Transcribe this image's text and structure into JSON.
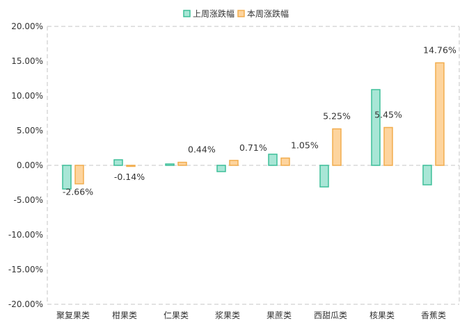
{
  "chart_data": {
    "type": "bar",
    "categories": [
      "聚复果类",
      "柑果类",
      "仁果类",
      "浆果类",
      "果蔗类",
      "西甜瓜类",
      "核果类",
      "香蕉类"
    ],
    "series": [
      {
        "name": "上周涨跌幅",
        "values": [
          -3.4,
          0.8,
          0.2,
          -0.9,
          1.6,
          -3.1,
          10.9,
          -2.8
        ],
        "fill": "#a8e6d6",
        "stroke": "#3dbf99"
      },
      {
        "name": "本周涨跌幅",
        "values": [
          -2.66,
          -0.14,
          0.44,
          0.71,
          1.05,
          5.25,
          5.45,
          14.76
        ],
        "fill": "#fdd49e",
        "stroke": "#f2ad4e",
        "data_labels": [
          "-2.66%",
          "-0.14%",
          "0.44%",
          "0.71%",
          "1.05%",
          "5.25%",
          "5.45%",
          "14.76%"
        ]
      }
    ],
    "yticks": [
      "20.00%",
      "15.00%",
      "10.00%",
      "5.00%",
      "0.00%",
      "-5.00%",
      "-10.00%",
      "-15.00%",
      "-20.00%"
    ],
    "ylim": [
      -20,
      20
    ],
    "legend_position": "top-center",
    "grid": false
  }
}
